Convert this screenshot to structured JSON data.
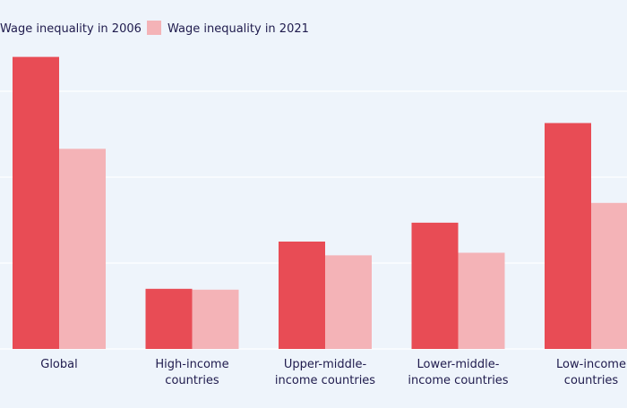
{
  "chart_data": {
    "type": "bar",
    "title": "",
    "xlabel": "",
    "ylabel": "",
    "categories": [
      [
        "Global"
      ],
      [
        "High-income",
        "countries"
      ],
      [
        "Upper-middle-",
        "income countries"
      ],
      [
        "Lower-middle-",
        "income countries"
      ],
      [
        "Low-income",
        "countries"
      ]
    ],
    "series": [
      {
        "name": "Wage inequality in 2006",
        "color": "#e84c55",
        "values": [
          34,
          7,
          12.5,
          14.7,
          26.3
        ]
      },
      {
        "name": "Wage inequality in 2021",
        "color": "#f4b3b7",
        "values": [
          23.3,
          6.9,
          10.9,
          11.2,
          17
        ]
      }
    ],
    "ylim": [
      0,
      34
    ],
    "grid": true,
    "legend_position": "top-left"
  }
}
